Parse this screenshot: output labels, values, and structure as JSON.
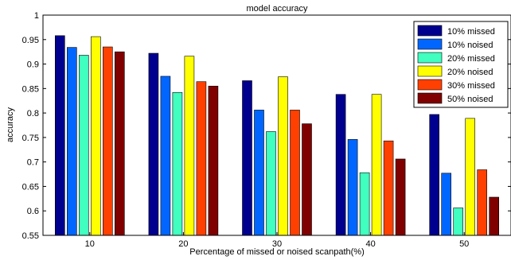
{
  "chart_data": {
    "type": "bar",
    "title": "model accuracy",
    "xlabel": "Percentage of missed or noised scanpath(%)",
    "ylabel": "accuracy",
    "categories": [
      "10",
      "20",
      "30",
      "40",
      "50"
    ],
    "ylim": [
      0.55,
      1.0
    ],
    "yticks": [
      "0.55",
      "0.6",
      "0.65",
      "0.7",
      "0.75",
      "0.8",
      "0.85",
      "0.9",
      "0.95",
      "1"
    ],
    "grid": false,
    "legend_position": "top-right",
    "series": [
      {
        "name": "10% missed",
        "color": "#00008f",
        "values": [
          0.958,
          0.922,
          0.866,
          0.838,
          0.797
        ]
      },
      {
        "name": "10% noised",
        "color": "#0066ff",
        "values": [
          0.934,
          0.875,
          0.806,
          0.746,
          0.677
        ]
      },
      {
        "name": "20% missed",
        "color": "#40ffbf",
        "values": [
          0.918,
          0.842,
          0.762,
          0.678,
          0.606
        ]
      },
      {
        "name": "20% noised",
        "color": "#ffff00",
        "values": [
          0.956,
          0.916,
          0.874,
          0.838,
          0.789
        ]
      },
      {
        "name": "30% missed",
        "color": "#ff4000",
        "values": [
          0.935,
          0.864,
          0.806,
          0.743,
          0.684
        ]
      },
      {
        "name": "50% noised",
        "color": "#800000",
        "values": [
          0.925,
          0.855,
          0.778,
          0.706,
          0.628
        ]
      }
    ]
  }
}
